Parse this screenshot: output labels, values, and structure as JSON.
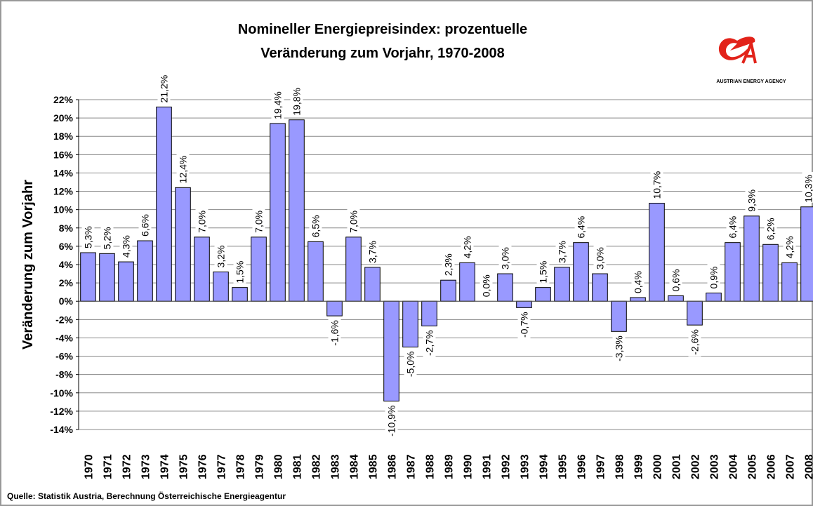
{
  "chart_data": {
    "type": "bar",
    "title": [
      "Nomineller Energiepreisindex: prozentuelle",
      "Veränderung zum Vorjahr, 1970-2008"
    ],
    "y_label": "Veränderung zum Vorjahr",
    "source": "Quelle: Statistik Austria, Berechnung Österreichische Energieagentur",
    "logo_text": "AUSTRIAN ENERGY AGENCY",
    "categories": [
      "1970",
      "1971",
      "1972",
      "1973",
      "1974",
      "1975",
      "1976",
      "1977",
      "1978",
      "1979",
      "1980",
      "1981",
      "1982",
      "1983",
      "1984",
      "1985",
      "1986",
      "1987",
      "1988",
      "1989",
      "1990",
      "1991",
      "1992",
      "1993",
      "1994",
      "1995",
      "1996",
      "1997",
      "1998",
      "1999",
      "2000",
      "2001",
      "2002",
      "2003",
      "2004",
      "2005",
      "2006",
      "2007",
      "2008"
    ],
    "values": [
      5.3,
      5.2,
      4.3,
      6.6,
      21.2,
      12.4,
      7.0,
      3.2,
      1.5,
      7.0,
      19.4,
      19.8,
      6.5,
      -1.6,
      7.0,
      3.7,
      -10.9,
      -5.0,
      -2.7,
      2.3,
      4.2,
      0.0,
      3.0,
      -0.7,
      1.5,
      3.7,
      6.4,
      3.0,
      -3.3,
      0.4,
      10.7,
      0.6,
      -2.6,
      0.9,
      6.4,
      9.3,
      6.2,
      4.2,
      10.3
    ],
    "value_labels": [
      "5,3%",
      "5,2%",
      "4,3%",
      "6,6%",
      "21,2%",
      "12,4%",
      "7,0%",
      "3,2%",
      "1,5%",
      "7,0%",
      "19,4%",
      "19,8%",
      "6,5%",
      "-1,6%",
      "7,0%",
      "3,7%",
      "-10,9%",
      "-5,0%",
      "-2,7%",
      "2,3%",
      "4,2%",
      "0,0%",
      "3,0%",
      "-0,7%",
      "1,5%",
      "3,7%",
      "6,4%",
      "3,0%",
      "-3,3%",
      "0,4%",
      "10,7%",
      "0,6%",
      "-2,6%",
      "0,9%",
      "6,4%",
      "9,3%",
      "6,2%",
      "4,2%",
      "10,3%"
    ],
    "color": "#9999ff",
    "ylim": [
      -14,
      22
    ],
    "yticks": [
      {
        "value": -14,
        "label": "-14%"
      },
      {
        "value": -12,
        "label": "-12%"
      },
      {
        "value": -10,
        "label": "-10%"
      },
      {
        "value": -8,
        "label": "-8%"
      },
      {
        "value": -6,
        "label": "-6%"
      },
      {
        "value": -4,
        "label": "-4%"
      },
      {
        "value": -2,
        "label": "-2%"
      },
      {
        "value": 0,
        "label": "0%"
      },
      {
        "value": 2,
        "label": "2%"
      },
      {
        "value": 4,
        "label": "4%"
      },
      {
        "value": 6,
        "label": "6%"
      },
      {
        "value": 8,
        "label": "8%"
      },
      {
        "value": 10,
        "label": "10%"
      },
      {
        "value": 12,
        "label": "12%"
      },
      {
        "value": 14,
        "label": "14%"
      },
      {
        "value": 16,
        "label": "16%"
      },
      {
        "value": 18,
        "label": "18%"
      },
      {
        "value": 20,
        "label": "20%"
      },
      {
        "value": 22,
        "label": "22%"
      }
    ],
    "grid": true
  }
}
